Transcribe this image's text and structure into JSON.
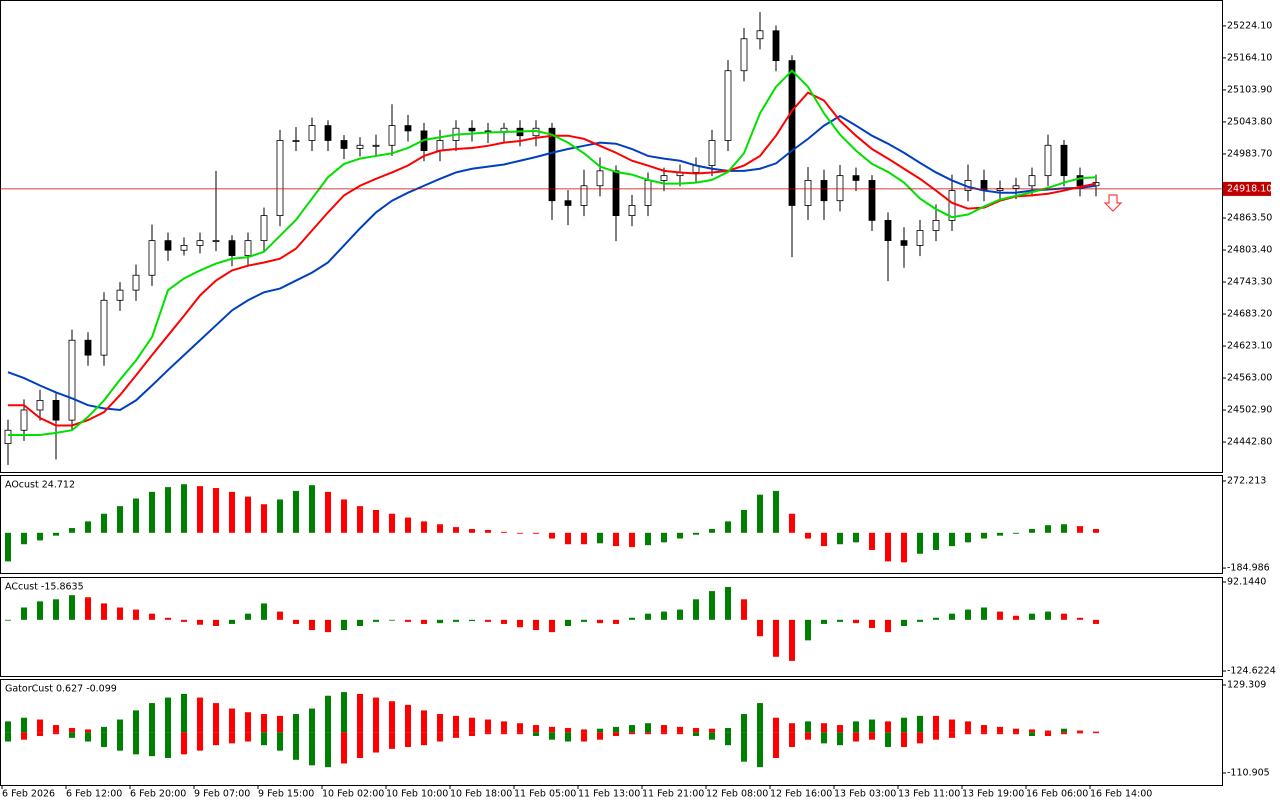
{
  "chart_data": [
    {
      "type": "candlestick",
      "categories": [
        "6 Feb 2026",
        null,
        null,
        null,
        "6 Feb 12:00",
        null,
        null,
        null,
        "6 Feb 20:00",
        null,
        null,
        null,
        "9 Feb 07:00",
        null,
        null,
        null,
        "9 Feb 15:00",
        null,
        null,
        null,
        "10 Feb 02:00",
        null,
        null,
        null,
        "10 Feb 10:00",
        null,
        null,
        null,
        "10 Feb 18:00",
        null,
        null,
        null,
        "11 Feb 05:00",
        null,
        null,
        null,
        "11 Feb 13:00",
        null,
        null,
        null,
        "11 Feb 21:00",
        null,
        null,
        null,
        "12 Feb 08:00",
        null,
        null,
        null,
        "12 Feb 16:00",
        null,
        null,
        null,
        "13 Feb 03:00",
        null,
        null,
        null,
        "13 Feb 11:00",
        null,
        null,
        null,
        "13 Feb 19:00",
        null,
        null,
        null,
        "16 Feb 06:00",
        null,
        null,
        null,
        "16 Feb 14:00"
      ],
      "open": [
        24440,
        24465,
        24503,
        24521,
        24484,
        24634,
        24606,
        24709,
        24728,
        24756,
        24821,
        24803,
        24812,
        24821,
        24821,
        24793,
        24821,
        24868,
        25009,
        25009,
        25037,
        25009,
        24994,
        25000,
        25000,
        25037,
        25027,
        24990,
        25009,
        25032,
        25027,
        25024,
        25032,
        25018,
        25032,
        24896,
        24887,
        24924,
        24952,
        24868,
        24887,
        24934,
        24943,
        24949,
        24962,
        25009,
        25140,
        25200,
        25215,
        25159,
        24887,
        24934,
        24896,
        24943,
        24934,
        24859,
        24821,
        24812,
        24840,
        24859,
        24915,
        24934,
        24915,
        24919,
        24924,
        24943,
        25000,
        24943,
        24924
      ],
      "high": [
        24485,
        24523,
        24541,
        24536,
        24654,
        24649,
        24724,
        24743,
        24776,
        24851,
        24836,
        24827,
        24836,
        24952,
        24831,
        24836,
        24883,
        25029,
        25034,
        25052,
        25047,
        25019,
        25015,
        25020,
        25077,
        25057,
        25042,
        25029,
        25047,
        25047,
        25042,
        25042,
        25047,
        25047,
        25042,
        24916,
        24954,
        24977,
        24962,
        24907,
        24949,
        24958,
        24964,
        24977,
        25029,
        25160,
        25220,
        25250,
        25225,
        25169,
        24959,
        24954,
        24963,
        24958,
        24944,
        24874,
        24846,
        24860,
        24889,
        24945,
        24964,
        24954,
        24934,
        24939,
        24958,
        25020,
        25010,
        24958,
        24945
      ],
      "low": [
        24400,
        24445,
        24483,
        24410,
        24464,
        24586,
        24586,
        24689,
        24708,
        24736,
        24783,
        24793,
        24797,
        24801,
        24773,
        24773,
        24801,
        24848,
        24989,
        24989,
        24989,
        24974,
        24979,
        24980,
        24980,
        25007,
        24970,
        24970,
        24989,
        25007,
        25004,
        25004,
        24998,
        24998,
        24860,
        24850,
        24867,
        24904,
        24820,
        24848,
        24867,
        24914,
        24923,
        24929,
        24942,
        24989,
        25120,
        25180,
        25139,
        24790,
        24860,
        24860,
        24876,
        24914,
        24839,
        24745,
        24770,
        24792,
        24820,
        24839,
        24895,
        24895,
        24895,
        24899,
        24904,
        24923,
        24923,
        24904,
        24904
      ],
      "close": [
        24465,
        24503,
        24521,
        24484,
        24634,
        24606,
        24709,
        24728,
        24756,
        24821,
        24803,
        24812,
        24821,
        24821,
        24793,
        24821,
        24868,
        25009,
        25009,
        25037,
        25009,
        24994,
        25000,
        25000,
        25037,
        25027,
        24990,
        25009,
        25032,
        25027,
        25024,
        25032,
        25018,
        25032,
        24896,
        24887,
        24924,
        24952,
        24868,
        24887,
        24934,
        24943,
        24949,
        24962,
        25009,
        25140,
        25200,
        25215,
        25159,
        24887,
        24934,
        24896,
        24943,
        24934,
        24859,
        24821,
        24812,
        24840,
        24859,
        24915,
        24934,
        24915,
        24919,
        24924,
        24943,
        25000,
        24943,
        24924,
        24930
      ],
      "up_color": "#ffffff",
      "down_color": "#000000",
      "lines": [
        {
          "color": "#0040c0",
          "values": [
            24574,
            24563,
            24549,
            24536,
            24525,
            24512,
            24506,
            24503,
            24521,
            24549,
            24578,
            24606,
            24634,
            24662,
            24690,
            24709,
            24724,
            24731,
            24746,
            24761,
            24780,
            24812,
            24844,
            24874,
            24896,
            24911,
            24924,
            24937,
            24949,
            24956,
            24960,
            24964,
            24971,
            24978,
            24986,
            24993,
            24999,
            25005,
            25003,
            24993,
            24980,
            24975,
            24971,
            24962,
            24956,
            24952,
            24952,
            24956,
            24966,
            24990,
            25012,
            25037,
            25055,
            25037,
            25018,
            25003,
            24986,
            24967,
            24949,
            24934,
            24922,
            24915,
            24911,
            24911,
            24915,
            24917,
            24919,
            24920,
            24924
          ]
        },
        {
          "color": "#ff0000",
          "values": [
            24512,
            24512,
            24488,
            24474,
            24474,
            24484,
            24499,
            24531,
            24568,
            24606,
            24643,
            24680,
            24718,
            24746,
            24765,
            24774,
            24780,
            24787,
            24806,
            24840,
            24874,
            24906,
            24924,
            24937,
            24949,
            24962,
            24980,
            24990,
            24993,
            24995,
            24999,
            25005,
            25008,
            25014,
            25018,
            25018,
            25012,
            24999,
            24986,
            24971,
            24962,
            24952,
            24949,
            24947,
            24949,
            24952,
            24962,
            24980,
            25018,
            25065,
            25099,
            25084,
            25046,
            25018,
            24993,
            24975,
            24956,
            24937,
            24915,
            24892,
            24881,
            24883,
            24896,
            24904,
            24906,
            24909,
            24915,
            24922,
            24928
          ]
        },
        {
          "color": "#00e000",
          "values": [
            24456,
            24456,
            24456,
            24460,
            24465,
            24490,
            24521,
            24560,
            24596,
            24640,
            24728,
            24750,
            24765,
            24778,
            24787,
            24790,
            24800,
            24830,
            24860,
            24900,
            24940,
            24965,
            24975,
            24980,
            24985,
            24995,
            25010,
            25015,
            25020,
            25022,
            25024,
            25025,
            25026,
            25027,
            25020,
            25005,
            24985,
            24960,
            24950,
            24945,
            24935,
            24928,
            24928,
            24930,
            24935,
            24950,
            24985,
            25060,
            25110,
            25140,
            25110,
            25060,
            25020,
            24990,
            24965,
            24950,
            24930,
            24900,
            24880,
            24865,
            24870,
            24885,
            24898,
            24905,
            24912,
            24920,
            24930,
            24938,
            24940
          ]
        }
      ],
      "current_price": {
        "value": 24918.1,
        "label": "24918.10"
      },
      "ylim": [
        24386.6,
        25270.9
      ],
      "yticks": [
        {
          "value": 25224.1,
          "label": "25224.10"
        },
        {
          "value": 25164.1,
          "label": "25164.10"
        },
        {
          "value": 25103.9,
          "label": "25103.90"
        },
        {
          "value": 25043.8,
          "label": "25043.80"
        },
        {
          "value": 24983.7,
          "label": "24983.70"
        },
        {
          "value": 24863.5,
          "label": "24863.50"
        },
        {
          "value": 24803.4,
          "label": "24803.40"
        },
        {
          "value": 24743.3,
          "label": "24743.30"
        },
        {
          "value": 24683.2,
          "label": "24683.20"
        },
        {
          "value": 24623.1,
          "label": "24623.10"
        },
        {
          "value": 24563,
          "label": "24563.00"
        },
        {
          "value": 24502.9,
          "label": "24502.90"
        },
        {
          "value": 24442.8,
          "label": "24442.80"
        }
      ]
    },
    {
      "type": "bar",
      "title": "AOcust 24.712",
      "values": [
        -150,
        -60,
        -40,
        -15,
        25,
        60,
        100,
        140,
        180,
        215,
        240,
        255,
        245,
        235,
        215,
        190,
        150,
        175,
        220,
        250,
        215,
        175,
        140,
        120,
        100,
        80,
        60,
        45,
        30,
        20,
        15,
        5,
        0,
        -5,
        -30,
        -60,
        -60,
        -55,
        -70,
        -75,
        -65,
        -50,
        -30,
        -10,
        20,
        60,
        120,
        200,
        220,
        100,
        -30,
        -70,
        -60,
        -50,
        -90,
        -150,
        -155,
        -110,
        -90,
        -70,
        -50,
        -30,
        -15,
        -5,
        20,
        40,
        45,
        35,
        20
      ],
      "up_color": "#008000",
      "down_color": "#ff0000",
      "ylim": [
        -211,
        298.2
      ],
      "yticks": [
        272.213,
        -184.986
      ]
    },
    {
      "type": "bar",
      "title": "ACcust -15.8635",
      "values": [
        0,
        30,
        45,
        50,
        60,
        55,
        40,
        30,
        25,
        15,
        5,
        -5,
        -12,
        -15,
        -10,
        15,
        40,
        20,
        -10,
        -25,
        -30,
        -25,
        -15,
        -5,
        0,
        -5,
        -10,
        -8,
        -5,
        -3,
        -5,
        -10,
        -18,
        -25,
        -30,
        -15,
        -5,
        -8,
        -10,
        5,
        15,
        20,
        25,
        50,
        70,
        80,
        50,
        -40,
        -90,
        -100,
        -50,
        -10,
        -5,
        -8,
        -20,
        -30,
        -15,
        -5,
        5,
        15,
        25,
        30,
        20,
        10,
        15,
        20,
        15,
        5,
        -10
      ],
      "up_color": "#008000",
      "down_color": "#ff0000",
      "ylim": [
        -136.8,
        101.886
      ],
      "yticks": [
        {
          "value": 92.144,
          "label": "92.1440"
        },
        -124.6224
      ]
    },
    {
      "type": "gator",
      "title": "GatorCust 0.627 -0.099",
      "upper": [
        30,
        40,
        35,
        20,
        12,
        8,
        15,
        35,
        60,
        80,
        95,
        105,
        95,
        80,
        65,
        55,
        50,
        45,
        50,
        65,
        100,
        110,
        105,
        95,
        85,
        75,
        60,
        50,
        45,
        40,
        35,
        30,
        25,
        20,
        15,
        12,
        8,
        10,
        15,
        20,
        25,
        20,
        15,
        12,
        10,
        12,
        50,
        80,
        40,
        25,
        30,
        25,
        20,
        30,
        35,
        30,
        40,
        45,
        45,
        35,
        30,
        20,
        15,
        10,
        8,
        5,
        10,
        5,
        2
      ],
      "lower": [
        -25,
        -20,
        -10,
        -5,
        -15,
        -25,
        -40,
        -50,
        -60,
        -65,
        -70,
        -60,
        -50,
        -35,
        -30,
        -25,
        -35,
        -50,
        -75,
        -90,
        -95,
        -85,
        -70,
        -55,
        -45,
        -40,
        -35,
        -25,
        -15,
        -10,
        -5,
        -5,
        -5,
        -10,
        -20,
        -25,
        -25,
        -20,
        -10,
        -5,
        -5,
        -5,
        -5,
        -10,
        -20,
        -35,
        -80,
        -95,
        -70,
        -40,
        -20,
        -30,
        -35,
        -25,
        -20,
        -40,
        -40,
        -30,
        -20,
        -15,
        -5,
        -5,
        -5,
        -5,
        -10,
        -10,
        -5,
        -3,
        -2
      ],
      "up_color": "#008000",
      "down_color": "#ff0000",
      "ylim": [
        -143.7,
        142.96
      ],
      "yticks": [
        129.309,
        -110.905
      ]
    }
  ]
}
